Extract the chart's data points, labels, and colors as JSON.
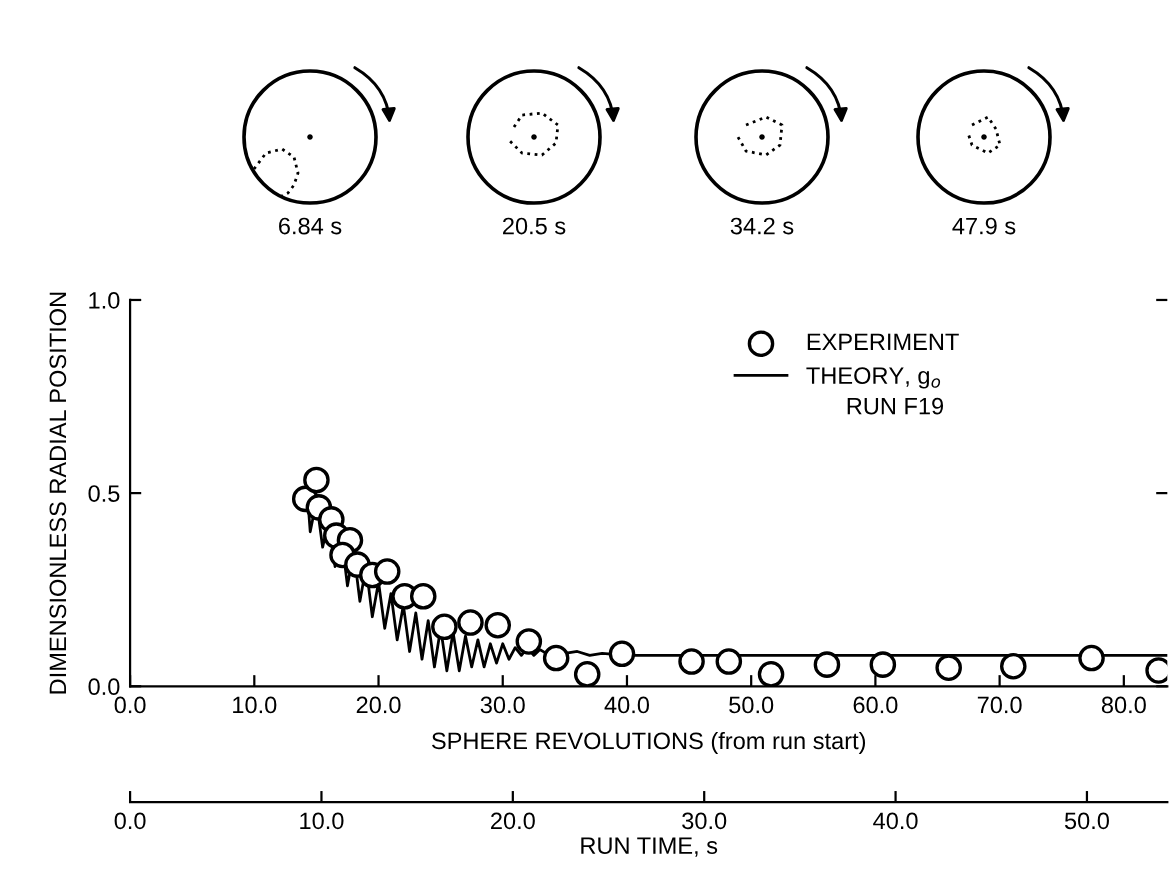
{
  "chart_data": {
    "type": "scatter",
    "xlabel": "SPHERE REVOLUTIONS (from run start)",
    "ylabel": "DIMENSIONLESS RADIAL POSITION",
    "x2label": "RUN TIME, s",
    "xlim": [
      0,
      83.5
    ],
    "ylim": [
      0,
      1
    ],
    "xticks": [
      {
        "value": 0,
        "label": "0.0"
      },
      {
        "value": 10,
        "label": "10.0"
      },
      {
        "value": 20,
        "label": "20.0"
      },
      {
        "value": 30,
        "label": "30.0"
      },
      {
        "value": 40,
        "label": "40.0"
      },
      {
        "value": 50,
        "label": "50.0"
      },
      {
        "value": 60,
        "label": "60.0"
      },
      {
        "value": 70,
        "label": "70.0"
      },
      {
        "value": 80,
        "label": "80.0"
      }
    ],
    "x2lim": [
      0,
      54.2
    ],
    "x2ticks": [
      {
        "value": 0,
        "label": "0.0"
      },
      {
        "value": 10,
        "label": "10.0"
      },
      {
        "value": 20,
        "label": "20.0"
      },
      {
        "value": 30,
        "label": "30.0"
      },
      {
        "value": 40,
        "label": "40.0"
      },
      {
        "value": 50,
        "label": "50.0"
      }
    ],
    "yticks": [
      {
        "value": 0,
        "label": "0.0"
      },
      {
        "value": 0.5,
        "label": "0.5"
      },
      {
        "value": 1,
        "label": "1.0"
      }
    ],
    "grid": false,
    "legend": "top right",
    "annotations": [
      "6.84 s",
      "20.5 s",
      "34.2 s",
      "47.9 s",
      "RUN F19"
    ],
    "series": [
      {
        "name": "THEORY, g$_{o}$",
        "type": "line",
        "color": "#000000",
        "marker": "none",
        "x": [
          14.2,
          14.5,
          15.0,
          15.5,
          16.0,
          16.5,
          17.0,
          17.5,
          18.0,
          18.5,
          19.0,
          19.5,
          20.0,
          20.5,
          21.0,
          21.5,
          22.0,
          22.5,
          23.0,
          23.5,
          24.0,
          24.5,
          25.0,
          25.5,
          26.0,
          26.5,
          27.0,
          27.5,
          28.0,
          28.5,
          29.0,
          29.5,
          30.0,
          30.5,
          31.0,
          31.5,
          32.0,
          32.5,
          33.0,
          33.5,
          34.0,
          35.0,
          36.0,
          37.0,
          38.0,
          40.0,
          50.0,
          60.0,
          70.0,
          83.5
        ],
        "values": [
          0.53,
          0.4,
          0.48,
          0.36,
          0.43,
          0.31,
          0.39,
          0.26,
          0.35,
          0.22,
          0.31,
          0.18,
          0.27,
          0.15,
          0.24,
          0.12,
          0.21,
          0.09,
          0.19,
          0.07,
          0.17,
          0.05,
          0.15,
          0.04,
          0.14,
          0.04,
          0.13,
          0.05,
          0.12,
          0.05,
          0.11,
          0.06,
          0.11,
          0.07,
          0.1,
          0.08,
          0.1,
          0.08,
          0.095,
          0.085,
          0.09,
          0.085,
          0.09,
          0.08,
          0.085,
          0.08,
          0.08,
          0.08,
          0.08,
          0.08
        ]
      },
      {
        "name": "EXPERIMENT",
        "color": "#000000",
        "marker": "circle",
        "x": [
          14.1,
          15.0,
          15.2,
          16.2,
          16.6,
          17.7,
          17.1,
          18.3,
          19.5,
          20.7,
          22.1,
          23.6,
          25.3,
          27.4,
          29.6,
          32.1,
          34.3,
          36.8,
          39.6,
          45.2,
          48.2,
          51.6,
          56.1,
          60.6,
          65.9,
          71.1,
          77.4,
          82.8
        ],
        "values": [
          0.485,
          0.534,
          0.463,
          0.432,
          0.39,
          0.378,
          0.34,
          0.315,
          0.288,
          0.297,
          0.233,
          0.233,
          0.154,
          0.165,
          0.158,
          0.116,
          0.073,
          0.031,
          0.084,
          0.064,
          0.064,
          0.031,
          0.056,
          0.056,
          0.048,
          0.052,
          0.073,
          0.041
        ]
      }
    ]
  }
}
